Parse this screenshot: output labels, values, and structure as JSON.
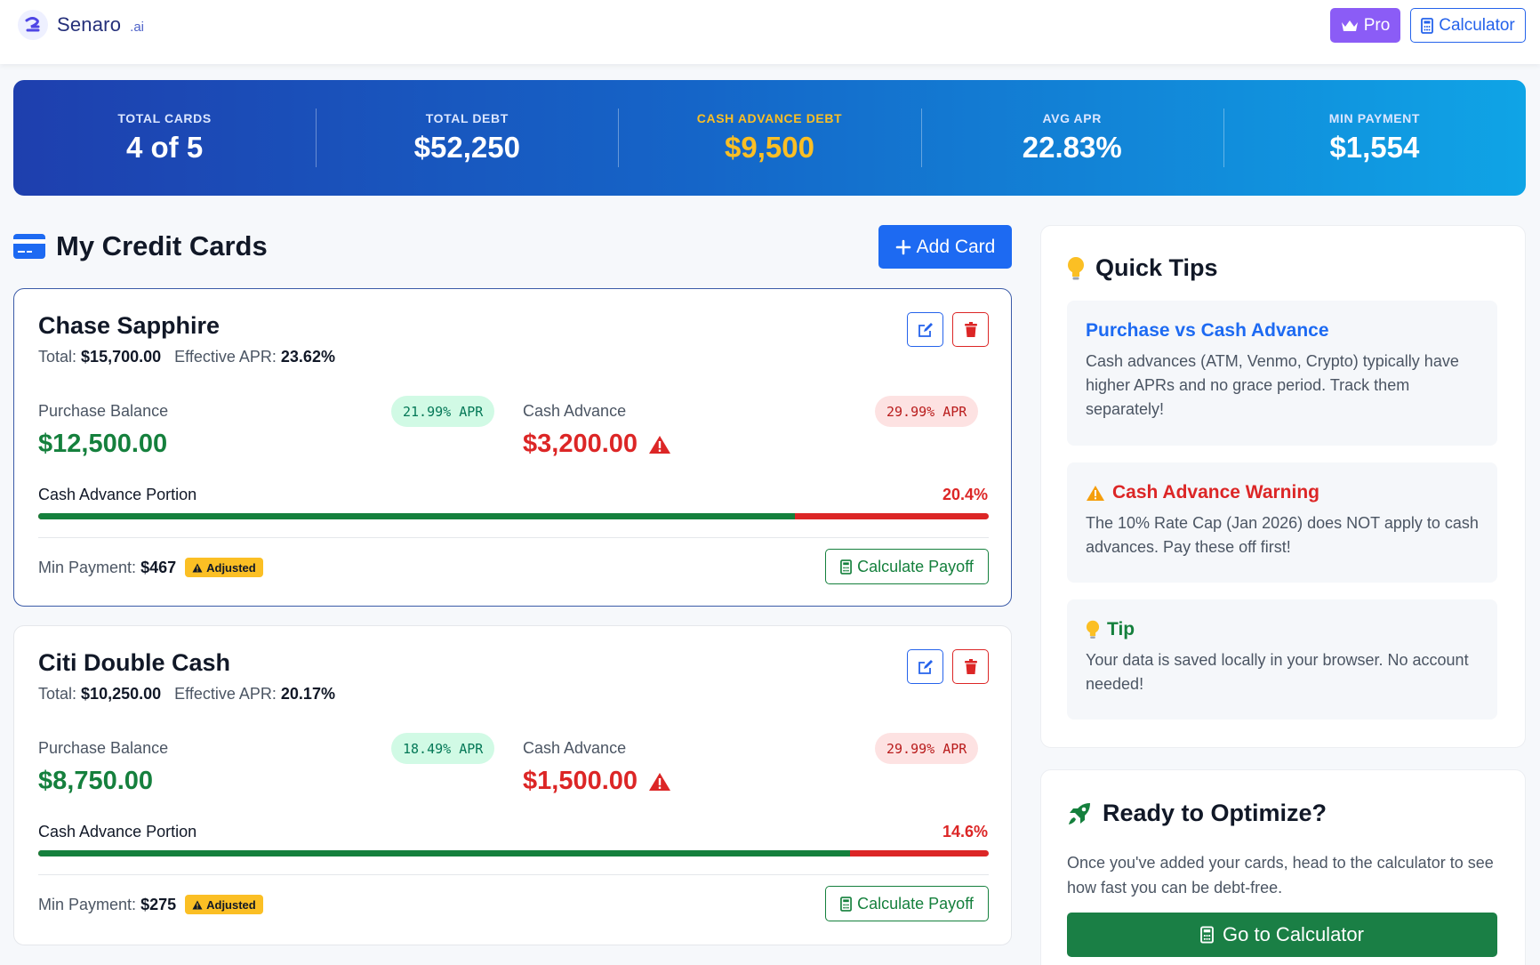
{
  "nav": {
    "brand": "Senaro",
    "brand_suffix": ".ai",
    "pro_label": "Pro",
    "calculator_label": "Calculator"
  },
  "stats": {
    "total_cards_label": "TOTAL CARDS",
    "total_cards_value": "4 of 5",
    "total_debt_label": "TOTAL DEBT",
    "total_debt_value": "$52,250",
    "cash_advance_label": "CASH ADVANCE DEBT",
    "cash_advance_value": "$9,500",
    "avg_apr_label": "AVG APR",
    "avg_apr_value": "22.83%",
    "min_payment_label": "MIN PAYMENT",
    "min_payment_value": "$1,554"
  },
  "section": {
    "title": "My Credit Cards",
    "add_label": "Add Card"
  },
  "labels": {
    "total": "Total:",
    "effective_apr": "Effective APR:",
    "purchase_balance": "Purchase Balance",
    "cash_advance": "Cash Advance",
    "portion": "Cash Advance Portion",
    "min_payment": "Min Payment:",
    "adjusted": "Adjusted",
    "calculate_payoff": "Calculate Payoff"
  },
  "cards": [
    {
      "name": "Chase Sapphire",
      "total": "$15,700.00",
      "effective_apr": "23.62%",
      "purchase_apr": "21.99% APR",
      "purchase_balance": "$12,500.00",
      "cash_apr": "29.99% APR",
      "cash_balance": "$3,200.00",
      "cash_portion": "20.4%",
      "cash_portion_fraction": 0.204,
      "min_payment": "$467"
    },
    {
      "name": "Citi Double Cash",
      "total": "$10,250.00",
      "effective_apr": "20.17%",
      "purchase_apr": "18.49% APR",
      "purchase_balance": "$8,750.00",
      "cash_apr": "29.99% APR",
      "cash_balance": "$1,500.00",
      "cash_portion": "14.6%",
      "cash_portion_fraction": 0.146,
      "min_payment": "$275"
    }
  ],
  "quick_tips": {
    "title": "Quick Tips",
    "items": [
      {
        "title": "Purchase vs Cash Advance",
        "text": "Cash advances (ATM, Venmo, Crypto) typically have higher APRs and no grace period. Track them separately!"
      },
      {
        "title": "Cash Advance Warning",
        "text": "The 10% Rate Cap (Jan 2026) does NOT apply to cash advances. Pay these off first!"
      },
      {
        "title": "Tip",
        "text": "Your data is saved locally in your browser. No account needed!"
      }
    ]
  },
  "optimize": {
    "title": "Ready to Optimize?",
    "text": "Once you've added your cards, head to the calculator to see how fast you can be debt-free.",
    "button_label": "Go to Calculator"
  },
  "colors": {
    "primary": "#1d6af2",
    "success": "#15803d",
    "danger": "#dc2626",
    "warning": "#fbbf24",
    "pro": "#8b5cf6"
  }
}
